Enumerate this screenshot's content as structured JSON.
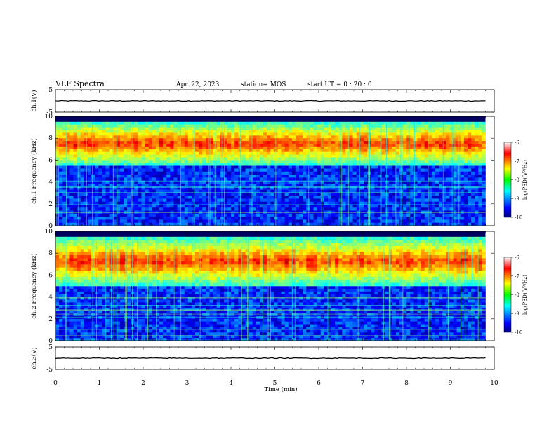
{
  "header": {
    "title": "VLF Spectra",
    "date": "Apr. 22, 2023",
    "station": "station= MOS",
    "start": "start  UT =   0  : 20 : 0"
  },
  "chart_data": [
    {
      "type": "line",
      "panel": "ch1-waveform",
      "ylabel": "ch.1(V)",
      "ylim": [
        -5,
        5
      ],
      "yticks": [
        "5",
        "-5"
      ],
      "xlim": [
        0,
        10
      ],
      "series": [
        {
          "x": [
            0,
            9.8
          ],
          "y": [
            0,
            0
          ]
        }
      ]
    },
    {
      "type": "heatmap",
      "panel": "ch1-spectrogram",
      "ylabel": "ch.1 Frequency (kHz)",
      "ylim": [
        0,
        10
      ],
      "yticks": [
        "0",
        "2",
        "4",
        "6",
        "8",
        "10"
      ],
      "xlim": [
        0,
        10
      ],
      "band_khz": [
        5.5,
        9.5
      ],
      "colorbar": {
        "label": "log(PSD)(V²/Hz)",
        "range": [
          -10,
          -6
        ],
        "ticks": [
          "-6",
          "-7",
          "-8",
          "-9",
          "-10"
        ]
      }
    },
    {
      "type": "heatmap",
      "panel": "ch2-spectrogram",
      "ylabel": "ch.2 Frequency (kHz)",
      "ylim": [
        0,
        10
      ],
      "yticks": [
        "0",
        "2",
        "4",
        "6",
        "8",
        "10"
      ],
      "xlim": [
        0,
        10
      ],
      "band_khz": [
        5.0,
        9.5
      ],
      "colorbar": {
        "label": "log(PSD)(V²/Hz)",
        "range": [
          -10,
          -6
        ],
        "ticks": [
          "-6",
          "-7",
          "-8",
          "-9",
          "-10"
        ]
      }
    },
    {
      "type": "line",
      "panel": "ch3-waveform",
      "ylabel": "ch.3(V)",
      "ylim": [
        -5,
        5
      ],
      "yticks": [
        "5",
        "-5"
      ],
      "xlim": [
        0,
        10
      ],
      "series": [
        {
          "x": [
            0,
            9.8
          ],
          "y": [
            0,
            0
          ]
        }
      ]
    }
  ],
  "xaxis": {
    "label": "Time (min)",
    "ticks": [
      "0",
      "1",
      "2",
      "3",
      "4",
      "5",
      "6",
      "7",
      "8",
      "9",
      "10"
    ]
  }
}
